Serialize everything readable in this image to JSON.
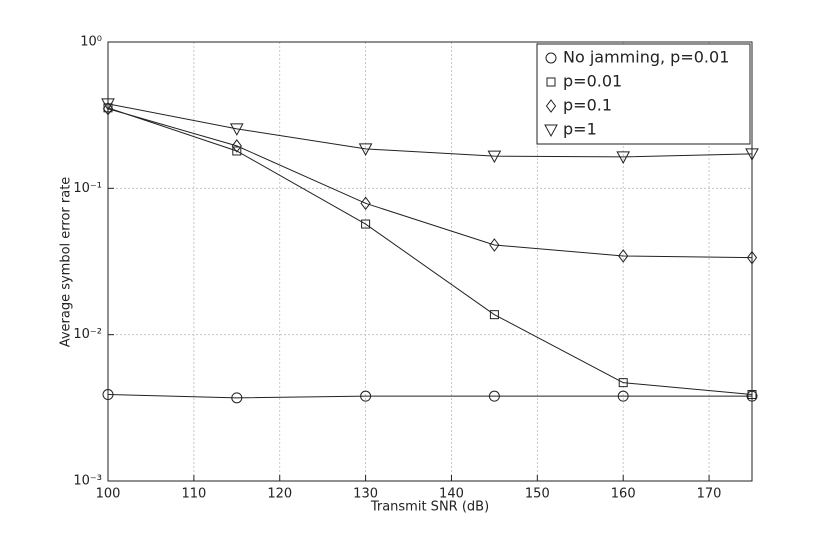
{
  "chart_data": {
    "type": "line",
    "xlabel": "Transmit SNR (dB)",
    "ylabel": "Average symbol error rate",
    "x": [
      100,
      115,
      130,
      145,
      160,
      175
    ],
    "xlim": [
      100,
      175
    ],
    "xticks": [
      100,
      110,
      120,
      130,
      140,
      150,
      160,
      170
    ],
    "ylim": [
      0.001,
      1
    ],
    "yscale": "log",
    "yticks": [
      {
        "value": 0.001,
        "label": "10⁻³"
      },
      {
        "value": 0.01,
        "label": "10⁻²"
      },
      {
        "value": 0.1,
        "label": "10⁻¹"
      },
      {
        "value": 1,
        "label": "10⁰"
      }
    ],
    "grid": true,
    "legend": "upper right",
    "series": [
      {
        "name": "No jamming, p=0.01",
        "color": "#222222",
        "marker": "circle",
        "values": [
          0.0039,
          0.0037,
          0.0038,
          0.0038,
          0.0038,
          0.0038
        ]
      },
      {
        "name": "p=0.01",
        "color": "#222222",
        "marker": "square",
        "values": [
          0.355,
          0.18,
          0.057,
          0.0137,
          0.0047,
          0.0039
        ]
      },
      {
        "name": "p=0.1",
        "color": "#222222",
        "marker": "diamond",
        "values": [
          0.35,
          0.195,
          0.079,
          0.041,
          0.0345,
          0.0336
        ]
      },
      {
        "name": "p=1",
        "color": "#222222",
        "marker": "triangle-down",
        "values": [
          0.378,
          0.255,
          0.186,
          0.166,
          0.164,
          0.172
        ]
      }
    ]
  }
}
